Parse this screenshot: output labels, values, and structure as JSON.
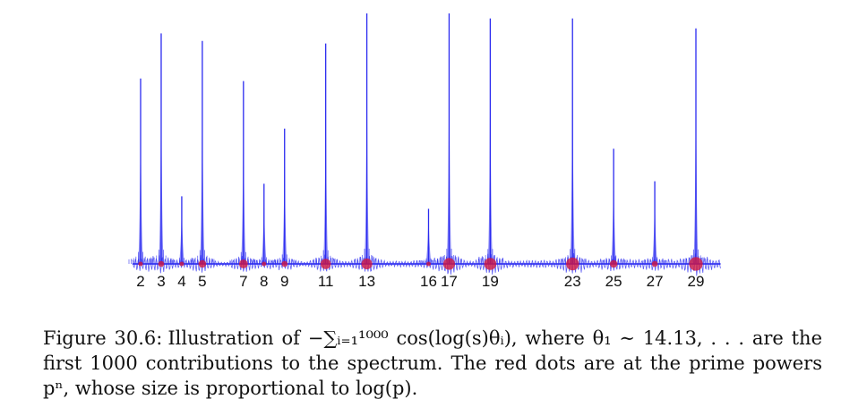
{
  "figure": {
    "label": "Figure 30.6:",
    "caption": "Illustration of −∑ᵢ₌₁¹⁰⁰⁰ cos(log(s)θᵢ), where θ₁ ∼ 14.13, . . . are the first 1000 contributions to the spectrum. The red dots are at the prime powers pⁿ, whose size is proportional to log(p)."
  },
  "chart_data": {
    "type": "line",
    "title": "",
    "xlabel": "",
    "ylabel": "",
    "x_ticks": [
      2,
      3,
      4,
      5,
      7,
      8,
      9,
      11,
      13,
      16,
      17,
      19,
      23,
      25,
      27,
      29
    ],
    "x_range": [
      1.6,
      30.2
    ],
    "ylim": [
      0,
      1
    ],
    "series": [
      {
        "name": "spectrum",
        "color": "#2a2af0",
        "peaks": [
          {
            "x": 2,
            "height": 0.74
          },
          {
            "x": 3,
            "height": 0.92
          },
          {
            "x": 4,
            "height": 0.27
          },
          {
            "x": 5,
            "height": 0.89
          },
          {
            "x": 7,
            "height": 0.73
          },
          {
            "x": 8,
            "height": 0.32
          },
          {
            "x": 9,
            "height": 0.54
          },
          {
            "x": 11,
            "height": 0.88
          },
          {
            "x": 13,
            "height": 1.0
          },
          {
            "x": 16,
            "height": 0.22
          },
          {
            "x": 17,
            "height": 1.0
          },
          {
            "x": 19,
            "height": 0.98
          },
          {
            "x": 23,
            "height": 0.98
          },
          {
            "x": 25,
            "height": 0.46
          },
          {
            "x": 27,
            "height": 0.33
          },
          {
            "x": 29,
            "height": 0.94
          }
        ]
      }
    ],
    "prime_powers": [
      {
        "x": 2,
        "log_p": 0.693
      },
      {
        "x": 3,
        "log_p": 1.099
      },
      {
        "x": 4,
        "log_p": 0.693
      },
      {
        "x": 5,
        "log_p": 1.609
      },
      {
        "x": 7,
        "log_p": 1.946
      },
      {
        "x": 8,
        "log_p": 0.693
      },
      {
        "x": 9,
        "log_p": 1.099
      },
      {
        "x": 11,
        "log_p": 2.398
      },
      {
        "x": 13,
        "log_p": 2.565
      },
      {
        "x": 16,
        "log_p": 0.693
      },
      {
        "x": 17,
        "log_p": 2.833
      },
      {
        "x": 19,
        "log_p": 2.944
      },
      {
        "x": 23,
        "log_p": 3.135
      },
      {
        "x": 25,
        "log_p": 1.609
      },
      {
        "x": 27,
        "log_p": 1.099
      },
      {
        "x": 29,
        "log_p": 3.367
      }
    ],
    "dot_color": "#d4163c",
    "tick_labels": [
      "2",
      "3",
      "4",
      "5",
      "7",
      "8",
      "9",
      "11",
      "13",
      "16",
      "17",
      "19",
      "23",
      "25",
      "27",
      "29"
    ]
  }
}
